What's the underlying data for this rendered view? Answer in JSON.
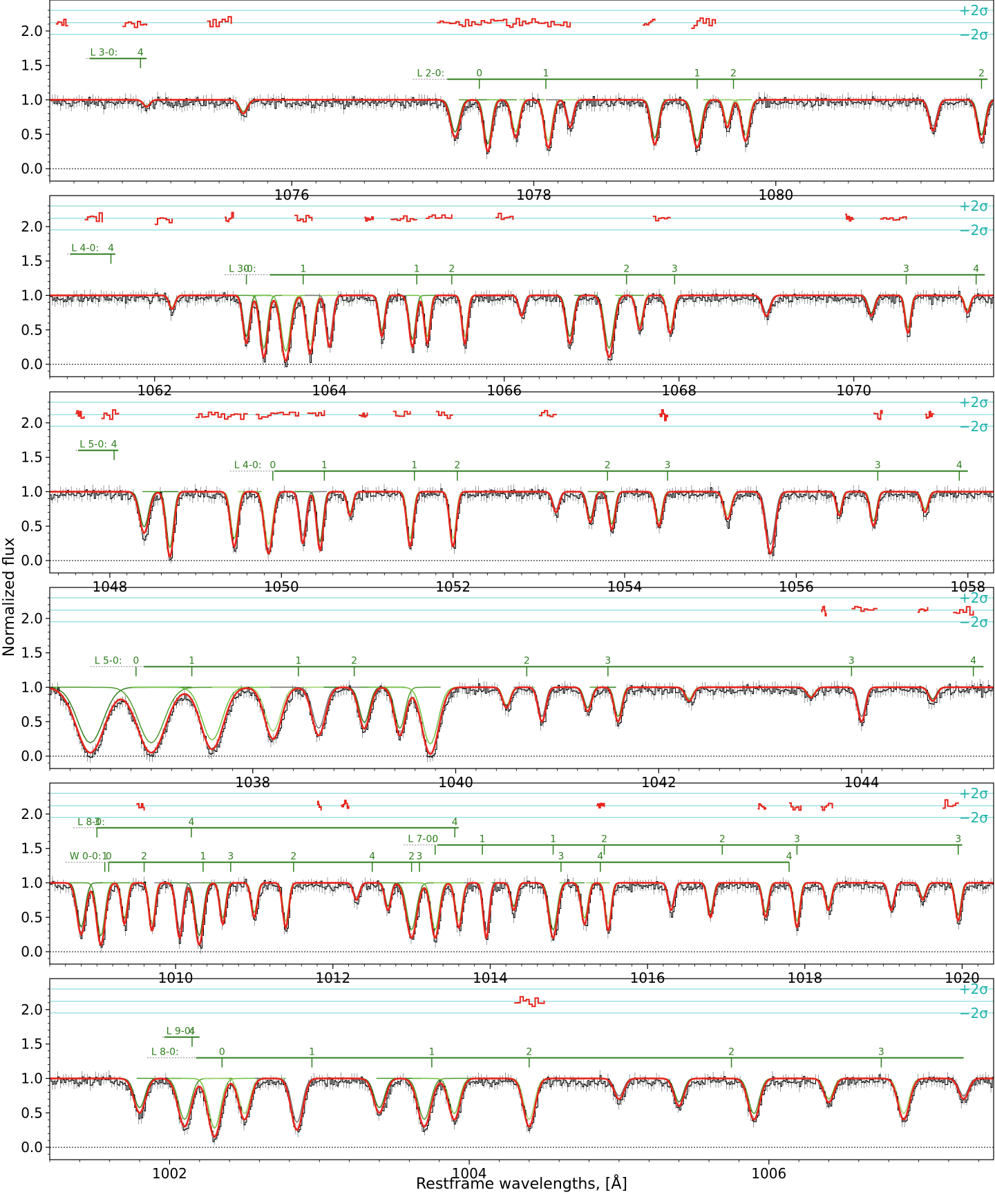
{
  "figure": {
    "ylabel": "Normalized flux",
    "xlabel": "Restframe wavelengths, [Å]",
    "sigma_plus": "+2σ",
    "sigma_minus": "−2σ",
    "colors": {
      "data": "#000000",
      "model": "#e8241c",
      "components": [
        "#2e7d1e",
        "#4c9a2a",
        "#6cbf3c",
        "#9bd46a",
        "#777777"
      ],
      "residual": "#e8241c",
      "sigma_lines": "#6fd3d0",
      "markers": "#2e7d1e"
    }
  },
  "chart_data": [
    {
      "type": "line",
      "panel": 1,
      "xlim": [
        1074.0,
        1081.8
      ],
      "ylim": [
        -0.18,
        2.45
      ],
      "xticks": [
        1076,
        1078,
        1080
      ],
      "yticks": [
        0.0,
        0.5,
        1.0,
        1.5,
        2.0
      ],
      "absorption": [
        [
          1077.35,
          0.55,
          0.07
        ],
        [
          1077.62,
          0.75,
          0.06
        ],
        [
          1077.85,
          0.55,
          0.06
        ],
        [
          1078.12,
          0.7,
          0.06
        ],
        [
          1078.3,
          0.4,
          0.05
        ],
        [
          1079.0,
          0.65,
          0.06
        ],
        [
          1079.35,
          0.7,
          0.07
        ],
        [
          1079.6,
          0.4,
          0.05
        ],
        [
          1079.75,
          0.6,
          0.06
        ],
        [
          1081.3,
          0.45,
          0.06
        ],
        [
          1081.7,
          0.6,
          0.06
        ],
        [
          1075.6,
          0.2,
          0.06
        ],
        [
          1074.8,
          0.1,
          0.05
        ]
      ],
      "residual_ranges": [
        [
          1074.05,
          1074.15
        ],
        [
          1074.6,
          1074.8
        ],
        [
          1075.3,
          1075.5
        ],
        [
          1077.2,
          1078.3
        ],
        [
          1078.9,
          1079.0
        ],
        [
          1079.3,
          1079.5
        ]
      ],
      "marker_groups": [
        {
          "label": "L 3-0:",
          "y": 1.6,
          "x0": 1074.3,
          "x1": 1074.8,
          "ticks": [
            {
              "x": 1074.75,
              "label": "4"
            }
          ]
        },
        {
          "label": "L 2-0:",
          "y": 1.3,
          "x0": 1077.0,
          "x1": 1081.75,
          "ticks": [
            {
              "x": 1077.55,
              "label": "0"
            },
            {
              "x": 1078.1,
              "label": "1"
            },
            {
              "x": 1079.35,
              "label": "1"
            },
            {
              "x": 1079.65,
              "label": "2"
            },
            {
              "x": 1081.7,
              "label": "2"
            }
          ]
        }
      ]
    },
    {
      "type": "line",
      "panel": 2,
      "xlim": [
        1060.8,
        1071.6
      ],
      "ylim": [
        -0.18,
        2.45
      ],
      "xticks": [
        1062,
        1064,
        1066,
        1068,
        1070
      ],
      "yticks": [
        0.0,
        0.5,
        1.0,
        1.5,
        2.0
      ],
      "absorption": [
        [
          1063.05,
          0.7,
          0.07
        ],
        [
          1063.25,
          0.9,
          0.08
        ],
        [
          1063.5,
          0.95,
          0.1
        ],
        [
          1063.78,
          0.85,
          0.08
        ],
        [
          1064.0,
          0.75,
          0.07
        ],
        [
          1064.6,
          0.6,
          0.06
        ],
        [
          1064.95,
          0.75,
          0.07
        ],
        [
          1065.12,
          0.7,
          0.06
        ],
        [
          1065.55,
          0.7,
          0.06
        ],
        [
          1066.2,
          0.3,
          0.06
        ],
        [
          1066.75,
          0.7,
          0.08
        ],
        [
          1067.2,
          0.9,
          0.1
        ],
        [
          1067.55,
          0.5,
          0.07
        ],
        [
          1067.9,
          0.55,
          0.07
        ],
        [
          1069.0,
          0.3,
          0.08
        ],
        [
          1070.2,
          0.3,
          0.07
        ],
        [
          1070.62,
          0.55,
          0.06
        ],
        [
          1071.3,
          0.25,
          0.06
        ],
        [
          1062.2,
          0.2,
          0.06
        ]
      ],
      "residual_ranges": [
        [
          1061.2,
          1061.4
        ],
        [
          1062.0,
          1062.2
        ],
        [
          1062.8,
          1062.9
        ],
        [
          1063.6,
          1063.8
        ],
        [
          1064.4,
          1064.5
        ],
        [
          1064.7,
          1065.0
        ],
        [
          1065.1,
          1065.4
        ],
        [
          1065.9,
          1066.1
        ],
        [
          1067.7,
          1067.9
        ],
        [
          1069.9,
          1070.0
        ],
        [
          1070.3,
          1070.6
        ]
      ],
      "marker_groups": [
        {
          "label": "L 4-0:",
          "y": 1.6,
          "x0": 1061.0,
          "x1": 1061.55,
          "ticks": [
            {
              "x": 1061.5,
              "label": "4"
            }
          ]
        },
        {
          "label": "L 3-0:",
          "y": 1.3,
          "x0": 1062.8,
          "x1": 1071.5,
          "ticks": [
            {
              "x": 1063.05,
              "label": "0"
            },
            {
              "x": 1063.7,
              "label": "1"
            },
            {
              "x": 1065.0,
              "label": "1"
            },
            {
              "x": 1065.4,
              "label": "2"
            },
            {
              "x": 1067.4,
              "label": "2"
            },
            {
              "x": 1067.95,
              "label": "3"
            },
            {
              "x": 1070.6,
              "label": "3"
            },
            {
              "x": 1071.4,
              "label": "4"
            }
          ]
        }
      ]
    },
    {
      "type": "line",
      "panel": 3,
      "xlim": [
        1047.3,
        1058.3
      ],
      "ylim": [
        -0.18,
        2.45
      ],
      "xticks": [
        1048,
        1050,
        1052,
        1054,
        1056,
        1058
      ],
      "yticks": [
        0.0,
        0.5,
        1.0,
        1.5,
        2.0
      ],
      "absorption": [
        [
          1048.4,
          0.6,
          0.1
        ],
        [
          1048.7,
          0.95,
          0.08
        ],
        [
          1049.45,
          0.8,
          0.08
        ],
        [
          1049.85,
          0.9,
          0.09
        ],
        [
          1050.25,
          0.75,
          0.07
        ],
        [
          1050.45,
          0.85,
          0.07
        ],
        [
          1050.8,
          0.35,
          0.06
        ],
        [
          1051.5,
          0.8,
          0.07
        ],
        [
          1052.0,
          0.8,
          0.07
        ],
        [
          1053.2,
          0.3,
          0.07
        ],
        [
          1053.6,
          0.45,
          0.07
        ],
        [
          1053.85,
          0.55,
          0.07
        ],
        [
          1054.4,
          0.5,
          0.07
        ],
        [
          1055.2,
          0.4,
          0.08
        ],
        [
          1055.7,
          0.9,
          0.1
        ],
        [
          1056.5,
          0.35,
          0.06
        ],
        [
          1056.9,
          0.5,
          0.07
        ],
        [
          1057.5,
          0.3,
          0.07
        ]
      ],
      "residual_ranges": [
        [
          1047.6,
          1047.7
        ],
        [
          1047.9,
          1048.1
        ],
        [
          1049.0,
          1049.6
        ],
        [
          1049.7,
          1050.2
        ],
        [
          1050.3,
          1050.5
        ],
        [
          1050.9,
          1051.0
        ],
        [
          1051.3,
          1051.5
        ],
        [
          1051.8,
          1052.0
        ],
        [
          1053.0,
          1053.2
        ],
        [
          1054.4,
          1054.5
        ],
        [
          1056.9,
          1057.0
        ],
        [
          1057.5,
          1057.6
        ]
      ],
      "marker_groups": [
        {
          "label": "L 5-0:",
          "y": 1.6,
          "x0": 1047.6,
          "x1": 1048.1,
          "ticks": [
            {
              "x": 1048.05,
              "label": "4"
            }
          ]
        },
        {
          "label": "L 4-0:",
          "y": 1.3,
          "x0": 1049.4,
          "x1": 1058.0,
          "ticks": [
            {
              "x": 1049.9,
              "label": "0"
            },
            {
              "x": 1050.5,
              "label": "1"
            },
            {
              "x": 1051.55,
              "label": "1"
            },
            {
              "x": 1052.05,
              "label": "2"
            },
            {
              "x": 1053.8,
              "label": "2"
            },
            {
              "x": 1054.5,
              "label": "3"
            },
            {
              "x": 1056.95,
              "label": "3"
            },
            {
              "x": 1057.9,
              "label": "4"
            }
          ]
        }
      ]
    },
    {
      "type": "line",
      "panel": 4,
      "xlim": [
        1036.0,
        1045.3
      ],
      "ylim": [
        -0.18,
        2.45
      ],
      "xticks": [
        1038,
        1040,
        1042,
        1044
      ],
      "yticks": [
        0.0,
        0.5,
        1.0,
        1.5,
        2.0
      ],
      "absorption": [
        [
          1036.4,
          0.95,
          0.25
        ],
        [
          1037.0,
          0.95,
          0.25
        ],
        [
          1037.6,
          0.9,
          0.2
        ],
        [
          1038.2,
          0.75,
          0.15
        ],
        [
          1038.65,
          0.7,
          0.12
        ],
        [
          1039.1,
          0.6,
          0.1
        ],
        [
          1039.45,
          0.7,
          0.1
        ],
        [
          1039.75,
          0.97,
          0.15
        ],
        [
          1040.5,
          0.3,
          0.07
        ],
        [
          1040.85,
          0.5,
          0.07
        ],
        [
          1041.3,
          0.35,
          0.07
        ],
        [
          1041.6,
          0.5,
          0.07
        ],
        [
          1042.3,
          0.2,
          0.07
        ],
        [
          1043.5,
          0.15,
          0.07
        ],
        [
          1044.0,
          0.5,
          0.07
        ],
        [
          1044.7,
          0.2,
          0.07
        ]
      ],
      "residual_ranges": [
        [
          1043.6,
          1043.65
        ],
        [
          1043.9,
          1044.15
        ],
        [
          1044.55,
          1044.65
        ],
        [
          1044.9,
          1045.1
        ]
      ],
      "marker_groups": [
        {
          "label": "L 5-0:",
          "y": 1.3,
          "x0": 1036.4,
          "x1": 1045.2,
          "ticks": [
            {
              "x": 1036.85,
              "label": "0"
            },
            {
              "x": 1037.4,
              "label": "1"
            },
            {
              "x": 1038.45,
              "label": "1"
            },
            {
              "x": 1039.0,
              "label": "2"
            },
            {
              "x": 1040.7,
              "label": "2"
            },
            {
              "x": 1041.5,
              "label": "3"
            },
            {
              "x": 1043.9,
              "label": "3"
            },
            {
              "x": 1045.1,
              "label": "4"
            }
          ]
        }
      ]
    },
    {
      "type": "line",
      "panel": 5,
      "xlim": [
        1008.4,
        1020.4
      ],
      "ylim": [
        -0.18,
        2.45
      ],
      "xticks": [
        1010,
        1012,
        1014,
        1016,
        1018,
        1020
      ],
      "yticks": [
        0.0,
        0.5,
        1.0,
        1.5,
        2.0
      ],
      "absorption": [
        [
          1008.8,
          0.75,
          0.1
        ],
        [
          1009.05,
          0.9,
          0.1
        ],
        [
          1009.35,
          0.6,
          0.07
        ],
        [
          1009.7,
          0.7,
          0.07
        ],
        [
          1010.05,
          0.8,
          0.08
        ],
        [
          1010.3,
          0.9,
          0.1
        ],
        [
          1010.6,
          0.6,
          0.07
        ],
        [
          1011.0,
          0.5,
          0.07
        ],
        [
          1011.4,
          0.65,
          0.07
        ],
        [
          1012.3,
          0.25,
          0.07
        ],
        [
          1012.7,
          0.4,
          0.07
        ],
        [
          1013.0,
          0.8,
          0.12
        ],
        [
          1013.3,
          0.8,
          0.1
        ],
        [
          1013.6,
          0.65,
          0.08
        ],
        [
          1013.95,
          0.8,
          0.07
        ],
        [
          1014.3,
          0.4,
          0.07
        ],
        [
          1014.8,
          0.8,
          0.1
        ],
        [
          1015.2,
          0.6,
          0.08
        ],
        [
          1015.5,
          0.7,
          0.07
        ],
        [
          1016.3,
          0.4,
          0.07
        ],
        [
          1016.8,
          0.5,
          0.07
        ],
        [
          1017.5,
          0.5,
          0.07
        ],
        [
          1017.9,
          0.65,
          0.07
        ],
        [
          1018.3,
          0.4,
          0.07
        ],
        [
          1019.1,
          0.4,
          0.07
        ],
        [
          1019.5,
          0.25,
          0.07
        ],
        [
          1019.95,
          0.55,
          0.07
        ]
      ],
      "residual_ranges": [
        [
          1009.5,
          1009.6
        ],
        [
          1011.8,
          1011.85
        ],
        [
          1012.1,
          1012.2
        ],
        [
          1015.35,
          1015.45
        ],
        [
          1017.4,
          1017.5
        ],
        [
          1017.8,
          1017.95
        ],
        [
          1018.2,
          1018.35
        ],
        [
          1019.75,
          1019.95
        ]
      ],
      "marker_groups": [
        {
          "label": "L 8-0:",
          "y": 1.8,
          "x0": 1008.7,
          "x1": 1013.6,
          "ticks": [
            {
              "x": 1009.0,
              "label": "3"
            },
            {
              "x": 1010.2,
              "label": "4"
            },
            {
              "x": 1013.55,
              "label": "4"
            }
          ]
        },
        {
          "label": "L 7-0:",
          "y": 1.55,
          "x0": 1012.9,
          "x1": 1020.0,
          "ticks": [
            {
              "x": 1013.3,
              "label": "0"
            },
            {
              "x": 1013.9,
              "label": "1"
            },
            {
              "x": 1014.8,
              "label": "1"
            },
            {
              "x": 1015.45,
              "label": "2"
            },
            {
              "x": 1016.95,
              "label": "2"
            },
            {
              "x": 1017.9,
              "label": "3"
            },
            {
              "x": 1019.95,
              "label": "3"
            }
          ]
        },
        {
          "label": "W 0-0:",
          "y": 1.3,
          "x0": 1008.6,
          "x1": 1017.8,
          "ticks": [
            {
              "x": 1009.1,
              "label": "1"
            },
            {
              "x": 1009.15,
              "label": "0"
            },
            {
              "x": 1009.6,
              "label": "2"
            },
            {
              "x": 1010.35,
              "label": "1"
            },
            {
              "x": 1010.7,
              "label": "3"
            },
            {
              "x": 1011.5,
              "label": "2"
            },
            {
              "x": 1012.5,
              "label": "4"
            },
            {
              "x": 1013.0,
              "label": "2"
            },
            {
              "x": 1013.1,
              "label": "3"
            },
            {
              "x": 1014.9,
              "label": "3"
            },
            {
              "x": 1015.4,
              "label": "4"
            },
            {
              "x": 1017.8,
              "label": "4"
            }
          ]
        }
      ]
    },
    {
      "type": "line",
      "panel": 6,
      "xlim": [
        1001.2,
        1007.5
      ],
      "ylim": [
        -0.18,
        2.45
      ],
      "xticks": [
        1002,
        1004,
        1006
      ],
      "yticks": [
        0.0,
        0.5,
        1.0,
        1.5,
        2.0
      ],
      "absorption": [
        [
          1001.8,
          0.5,
          0.07
        ],
        [
          1002.1,
          0.7,
          0.08
        ],
        [
          1002.3,
          0.85,
          0.08
        ],
        [
          1002.5,
          0.6,
          0.07
        ],
        [
          1002.85,
          0.75,
          0.07
        ],
        [
          1003.4,
          0.5,
          0.07
        ],
        [
          1003.7,
          0.7,
          0.08
        ],
        [
          1003.9,
          0.6,
          0.07
        ],
        [
          1004.4,
          0.7,
          0.07
        ],
        [
          1005.0,
          0.3,
          0.06
        ],
        [
          1005.4,
          0.4,
          0.06
        ],
        [
          1005.9,
          0.6,
          0.07
        ],
        [
          1006.4,
          0.35,
          0.06
        ],
        [
          1006.9,
          0.6,
          0.07
        ],
        [
          1007.3,
          0.3,
          0.06
        ]
      ],
      "residual_ranges": [
        [
          1004.3,
          1004.5
        ]
      ],
      "marker_groups": [
        {
          "label": "L 9-0:",
          "y": 1.6,
          "x0": 1001.95,
          "x1": 1002.2,
          "ticks": [
            {
              "x": 1002.15,
              "label": "4"
            }
          ]
        },
        {
          "label": "L 8-0:",
          "y": 1.3,
          "x0": 1001.85,
          "x1": 1007.3,
          "ticks": [
            {
              "x": 1002.35,
              "label": "0"
            },
            {
              "x": 1002.95,
              "label": "1"
            },
            {
              "x": 1003.75,
              "label": "1"
            },
            {
              "x": 1004.4,
              "label": "2"
            },
            {
              "x": 1005.75,
              "label": "2"
            },
            {
              "x": 1006.75,
              "label": "3"
            }
          ]
        }
      ]
    }
  ]
}
